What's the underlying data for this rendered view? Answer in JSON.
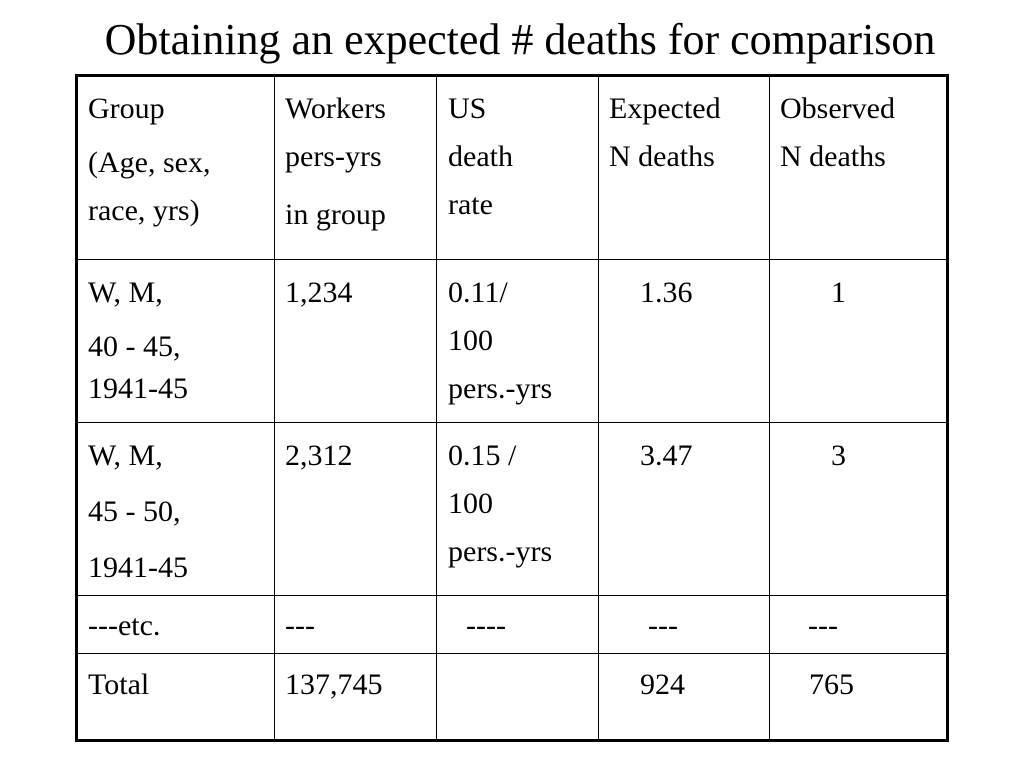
{
  "slide": {
    "title": "Obtaining an expected # deaths for comparison"
  },
  "table": {
    "header": {
      "group": [
        "Group",
        "(Age, sex,",
        "race, yrs)"
      ],
      "workers": [
        "Workers",
        "pers-yrs",
        "in group"
      ],
      "us_rate": [
        "US",
        "death",
        "rate"
      ],
      "expected": [
        "Expected",
        "N deaths"
      ],
      "observed": [
        "Observed",
        "N deaths"
      ]
    },
    "rows": [
      {
        "group": [
          "W, M,",
          "40 - 45,",
          "1941-45"
        ],
        "workers": "1,234",
        "us_rate": [
          "0.11/",
          "100",
          "pers.-yrs"
        ],
        "expected": "1.36",
        "observed": "1"
      },
      {
        "group": [
          "W, M,",
          "45 - 50,",
          "1941-45"
        ],
        "workers": "2,312",
        "us_rate": [
          "0.15 /",
          "100",
          "pers.-yrs"
        ],
        "expected": "3.47",
        "observed": "3"
      },
      {
        "group": [
          "---etc."
        ],
        "workers": "---",
        "us_rate": [
          "----"
        ],
        "expected": "---",
        "observed": "---"
      },
      {
        "group": [
          "Total"
        ],
        "workers": "137,745",
        "us_rate": [
          ""
        ],
        "expected": "924",
        "observed": "765"
      }
    ]
  }
}
